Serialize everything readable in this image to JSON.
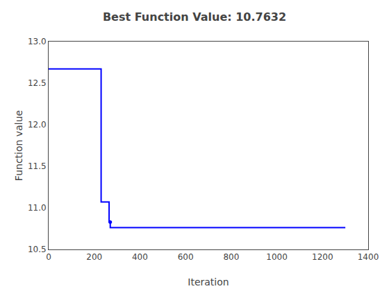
{
  "chart_data": {
    "type": "line",
    "title": "Best Function Value: 10.7632",
    "xlabel": "Iteration",
    "ylabel": "Function value",
    "xlim": [
      0,
      1400
    ],
    "ylim": [
      10.5,
      13
    ],
    "xticks": [
      0,
      200,
      400,
      600,
      800,
      1000,
      1200,
      1400
    ],
    "yticks": [
      10.5,
      {
        "value": 11,
        "label": "11.0"
      },
      11.5,
      {
        "value": 12,
        "label": "12.0"
      },
      12.5,
      {
        "value": 13,
        "label": "13.0"
      }
    ],
    "grid": false,
    "series": [
      {
        "type": "line",
        "color": "#0000FF",
        "x": [
          0,
          230,
          230,
          265,
          265,
          270,
          270,
          1300
        ],
        "values": [
          12.67,
          12.67,
          11.07,
          11.07,
          10.83,
          10.83,
          10.7632,
          10.7632
        ]
      },
      {
        "type": "scatter",
        "marker": "dot",
        "color": "#0000FF",
        "x": [
          270
        ],
        "values": [
          10.83
        ]
      }
    ]
  }
}
